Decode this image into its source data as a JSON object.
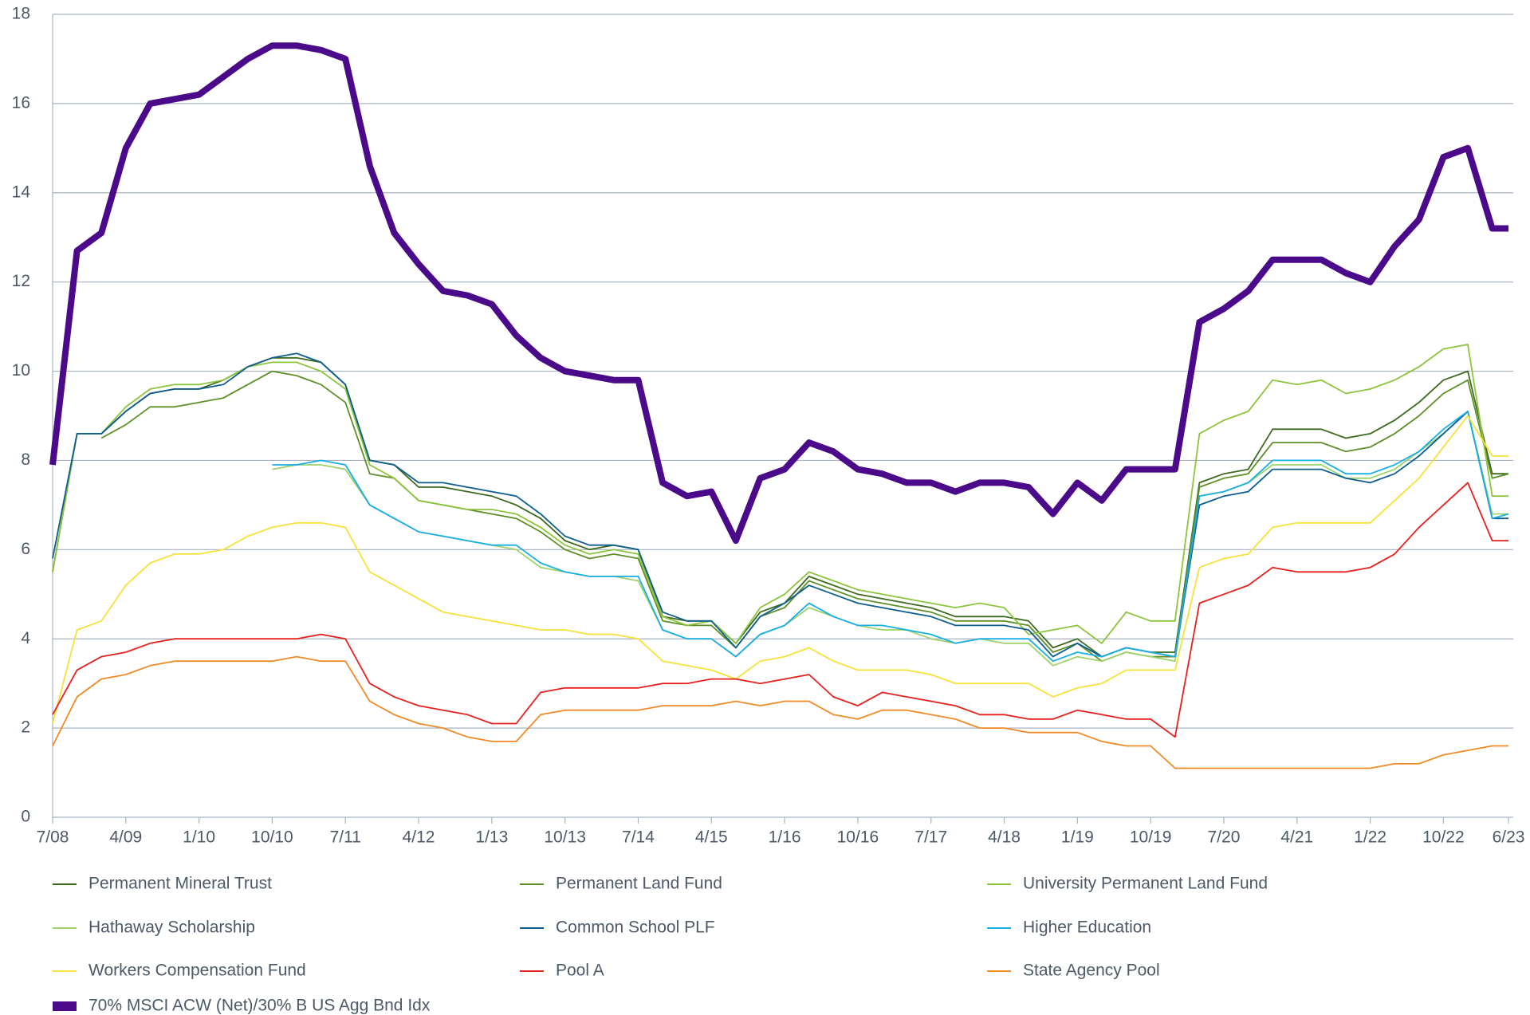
{
  "chart_data": {
    "type": "line",
    "x": [
      0,
      3,
      6,
      9,
      12,
      15,
      18,
      21,
      24,
      27,
      30,
      33,
      36,
      39,
      42,
      45,
      48,
      51,
      54,
      57,
      60,
      63,
      66,
      69,
      72,
      75,
      78,
      81,
      84,
      87,
      90,
      93,
      96,
      99,
      102,
      105,
      108,
      111,
      114,
      117,
      120,
      123,
      126,
      129,
      132,
      135,
      138,
      141,
      144,
      147,
      150,
      153,
      156,
      159,
      162,
      165,
      168,
      171,
      174,
      177,
      179
    ],
    "xlim": [
      0,
      179
    ],
    "xticks": [
      {
        "value": 0,
        "label": "7/08"
      },
      {
        "value": 9,
        "label": "4/09"
      },
      {
        "value": 18,
        "label": "1/10"
      },
      {
        "value": 27,
        "label": "10/10"
      },
      {
        "value": 36,
        "label": "7/11"
      },
      {
        "value": 45,
        "label": "4/12"
      },
      {
        "value": 54,
        "label": "1/13"
      },
      {
        "value": 63,
        "label": "10/13"
      },
      {
        "value": 72,
        "label": "7/14"
      },
      {
        "value": 81,
        "label": "4/15"
      },
      {
        "value": 90,
        "label": "1/16"
      },
      {
        "value": 99,
        "label": "10/16"
      },
      {
        "value": 108,
        "label": "7/17"
      },
      {
        "value": 117,
        "label": "4/18"
      },
      {
        "value": 126,
        "label": "1/19"
      },
      {
        "value": 135,
        "label": "10/19"
      },
      {
        "value": 144,
        "label": "7/20"
      },
      {
        "value": 153,
        "label": "4/21"
      },
      {
        "value": 162,
        "label": "1/22"
      },
      {
        "value": 171,
        "label": "10/22"
      },
      {
        "value": 179,
        "label": "6/23"
      }
    ],
    "ylim": [
      0,
      18
    ],
    "yticks": [
      0,
      2,
      4,
      6,
      8,
      10,
      12,
      14,
      16,
      18
    ],
    "grid": true,
    "legend": "bottom",
    "series": [
      {
        "name": "Permanent Mineral Trust",
        "color": "#3b6a1e",
        "values": [
          5.5,
          8.6,
          8.6,
          9.1,
          9.5,
          9.6,
          9.6,
          9.8,
          10.1,
          10.3,
          10.3,
          10.2,
          9.7,
          8.0,
          7.9,
          7.4,
          7.4,
          7.3,
          7.2,
          7.0,
          6.7,
          6.2,
          6.0,
          6.1,
          6.0,
          4.5,
          4.4,
          4.4,
          3.9,
          4.6,
          4.8,
          5.4,
          5.2,
          5.0,
          4.9,
          4.8,
          4.7,
          4.5,
          4.5,
          4.5,
          4.4,
          3.8,
          4.0,
          3.6,
          3.8,
          3.7,
          3.7,
          7.5,
          7.7,
          7.8,
          8.7,
          8.7,
          8.7,
          8.5,
          8.6,
          8.9,
          9.3,
          9.8,
          10.0,
          7.7,
          7.7
        ]
      },
      {
        "name": "Permanent Land Fund",
        "color": "#5e8f27",
        "values": [
          null,
          null,
          8.5,
          8.8,
          9.2,
          9.2,
          9.3,
          9.4,
          9.7,
          10.0,
          9.9,
          9.7,
          9.3,
          7.7,
          7.6,
          7.1,
          7.0,
          6.9,
          6.8,
          6.7,
          6.4,
          6.0,
          5.8,
          5.9,
          5.8,
          4.4,
          4.3,
          4.3,
          3.8,
          4.5,
          4.7,
          5.3,
          5.1,
          4.9,
          4.8,
          4.7,
          4.6,
          4.4,
          4.4,
          4.4,
          4.3,
          3.7,
          3.9,
          3.5,
          3.7,
          3.6,
          3.6,
          7.4,
          7.6,
          7.7,
          8.4,
          8.4,
          8.4,
          8.2,
          8.3,
          8.6,
          9.0,
          9.5,
          9.8,
          7.6,
          7.7
        ]
      },
      {
        "name": "University Permanent Land Fund",
        "color": "#8cc43c",
        "values": [
          5.5,
          8.6,
          8.6,
          9.2,
          9.6,
          9.7,
          9.7,
          9.8,
          10.1,
          10.2,
          10.2,
          10.0,
          9.6,
          7.9,
          7.6,
          7.1,
          7.0,
          6.9,
          6.9,
          6.8,
          6.5,
          6.1,
          5.9,
          6.0,
          5.9,
          4.5,
          4.3,
          4.4,
          3.9,
          4.7,
          5.0,
          5.5,
          5.3,
          5.1,
          5.0,
          4.9,
          4.8,
          4.7,
          4.8,
          4.7,
          4.1,
          4.2,
          4.3,
          3.9,
          4.6,
          4.4,
          4.4,
          8.6,
          8.9,
          9.1,
          9.8,
          9.7,
          9.8,
          9.5,
          9.6,
          9.8,
          10.1,
          10.5,
          10.6,
          7.2,
          7.2
        ]
      },
      {
        "name": "Hathaway Scholarship",
        "color": "#9fd26a",
        "values": [
          null,
          null,
          null,
          null,
          null,
          null,
          null,
          null,
          null,
          7.8,
          7.9,
          7.9,
          7.8,
          7.0,
          6.7,
          6.4,
          6.3,
          6.2,
          6.1,
          6.0,
          5.6,
          5.5,
          5.4,
          5.4,
          5.3,
          4.2,
          4.0,
          4.0,
          3.6,
          4.1,
          4.3,
          4.7,
          4.5,
          4.3,
          4.2,
          4.2,
          4.0,
          3.9,
          4.0,
          3.9,
          3.9,
          3.4,
          3.6,
          3.5,
          3.7,
          3.6,
          3.5,
          7.2,
          7.3,
          7.5,
          7.9,
          7.9,
          7.9,
          7.6,
          7.6,
          7.8,
          8.2,
          8.6,
          9.1,
          6.8,
          6.8
        ]
      },
      {
        "name": "Common School PLF",
        "color": "#0d5e8e",
        "values": [
          5.8,
          8.6,
          8.6,
          9.1,
          9.5,
          9.6,
          9.6,
          9.7,
          10.1,
          10.3,
          10.4,
          10.2,
          9.7,
          8.0,
          7.9,
          7.5,
          7.5,
          7.4,
          7.3,
          7.2,
          6.8,
          6.3,
          6.1,
          6.1,
          6.0,
          4.6,
          4.4,
          4.4,
          3.8,
          4.5,
          4.8,
          5.2,
          5.0,
          4.8,
          4.7,
          4.6,
          4.5,
          4.3,
          4.3,
          4.3,
          4.2,
          3.6,
          3.9,
          3.6,
          3.8,
          3.7,
          3.6,
          7.0,
          7.2,
          7.3,
          7.8,
          7.8,
          7.8,
          7.6,
          7.5,
          7.7,
          8.1,
          8.6,
          9.1,
          6.7,
          6.7
        ]
      },
      {
        "name": "Higher Education",
        "color": "#1aaee6",
        "values": [
          null,
          null,
          null,
          null,
          null,
          null,
          null,
          null,
          null,
          7.9,
          7.9,
          8.0,
          7.9,
          7.0,
          6.7,
          6.4,
          6.3,
          6.2,
          6.1,
          6.1,
          5.7,
          5.5,
          5.4,
          5.4,
          5.4,
          4.2,
          4.0,
          4.0,
          3.6,
          4.1,
          4.3,
          4.8,
          4.5,
          4.3,
          4.3,
          4.2,
          4.1,
          3.9,
          4.0,
          4.0,
          4.0,
          3.5,
          3.7,
          3.6,
          3.8,
          3.7,
          3.6,
          7.2,
          7.3,
          7.5,
          8.0,
          8.0,
          8.0,
          7.7,
          7.7,
          7.9,
          8.2,
          8.7,
          9.1,
          6.7,
          6.8
        ]
      },
      {
        "name": "Workers Compensation Fund",
        "color": "#f6e23a",
        "values": [
          2.1,
          4.2,
          4.4,
          5.2,
          5.7,
          5.9,
          5.9,
          6.0,
          6.3,
          6.5,
          6.6,
          6.6,
          6.5,
          5.5,
          5.2,
          4.9,
          4.6,
          4.5,
          4.4,
          4.3,
          4.2,
          4.2,
          4.1,
          4.1,
          4.0,
          3.5,
          3.4,
          3.3,
          3.1,
          3.5,
          3.6,
          3.8,
          3.5,
          3.3,
          3.3,
          3.3,
          3.2,
          3.0,
          3.0,
          3.0,
          3.0,
          2.7,
          2.9,
          3.0,
          3.3,
          3.3,
          3.3,
          5.6,
          5.8,
          5.9,
          6.5,
          6.6,
          6.6,
          6.6,
          6.6,
          7.1,
          7.6,
          8.3,
          9.0,
          8.1,
          8.1
        ]
      },
      {
        "name": "Pool A",
        "color": "#e8201c",
        "values": [
          2.3,
          3.3,
          3.6,
          3.7,
          3.9,
          4.0,
          4.0,
          4.0,
          4.0,
          4.0,
          4.0,
          4.1,
          4.0,
          3.0,
          2.7,
          2.5,
          2.4,
          2.3,
          2.1,
          2.1,
          2.8,
          2.9,
          2.9,
          2.9,
          2.9,
          3.0,
          3.0,
          3.1,
          3.1,
          3.0,
          3.1,
          3.2,
          2.7,
          2.5,
          2.8,
          2.7,
          2.6,
          2.5,
          2.3,
          2.3,
          2.2,
          2.2,
          2.4,
          2.3,
          2.2,
          2.2,
          1.8,
          4.8,
          5.0,
          5.2,
          5.6,
          5.5,
          5.5,
          5.5,
          5.6,
          5.9,
          6.5,
          7.0,
          7.5,
          6.2,
          6.2
        ]
      },
      {
        "name": "State Agency Pool",
        "color": "#f08a26",
        "values": [
          1.6,
          2.7,
          3.1,
          3.2,
          3.4,
          3.5,
          3.5,
          3.5,
          3.5,
          3.5,
          3.6,
          3.5,
          3.5,
          2.6,
          2.3,
          2.1,
          2.0,
          1.8,
          1.7,
          1.7,
          2.3,
          2.4,
          2.4,
          2.4,
          2.4,
          2.5,
          2.5,
          2.5,
          2.6,
          2.5,
          2.6,
          2.6,
          2.3,
          2.2,
          2.4,
          2.4,
          2.3,
          2.2,
          2.0,
          2.0,
          1.9,
          1.9,
          1.9,
          1.7,
          1.6,
          1.6,
          1.1,
          1.1,
          1.1,
          1.1,
          1.1,
          1.1,
          1.1,
          1.1,
          1.1,
          1.2,
          1.2,
          1.4,
          1.5,
          1.6,
          1.6
        ]
      },
      {
        "name": "70% MSCI ACW (Net)/30% B US Agg Bnd Idx",
        "color": "#4a0a8a",
        "values": [
          7.9,
          12.7,
          13.1,
          15.0,
          16.0,
          16.1,
          16.2,
          16.6,
          17.0,
          17.3,
          17.3,
          17.2,
          17.0,
          14.6,
          13.1,
          12.4,
          11.8,
          11.7,
          11.5,
          10.8,
          10.3,
          10.0,
          9.9,
          9.8,
          9.8,
          7.5,
          7.2,
          7.3,
          6.2,
          7.6,
          7.8,
          8.4,
          8.2,
          7.8,
          7.7,
          7.5,
          7.5,
          7.3,
          7.5,
          7.5,
          7.4,
          6.8,
          7.5,
          7.1,
          7.8,
          7.8,
          7.8,
          11.1,
          11.4,
          11.8,
          12.5,
          12.5,
          12.5,
          12.2,
          12.0,
          12.8,
          13.4,
          14.8,
          15.0,
          13.2,
          13.2
        ]
      }
    ]
  }
}
